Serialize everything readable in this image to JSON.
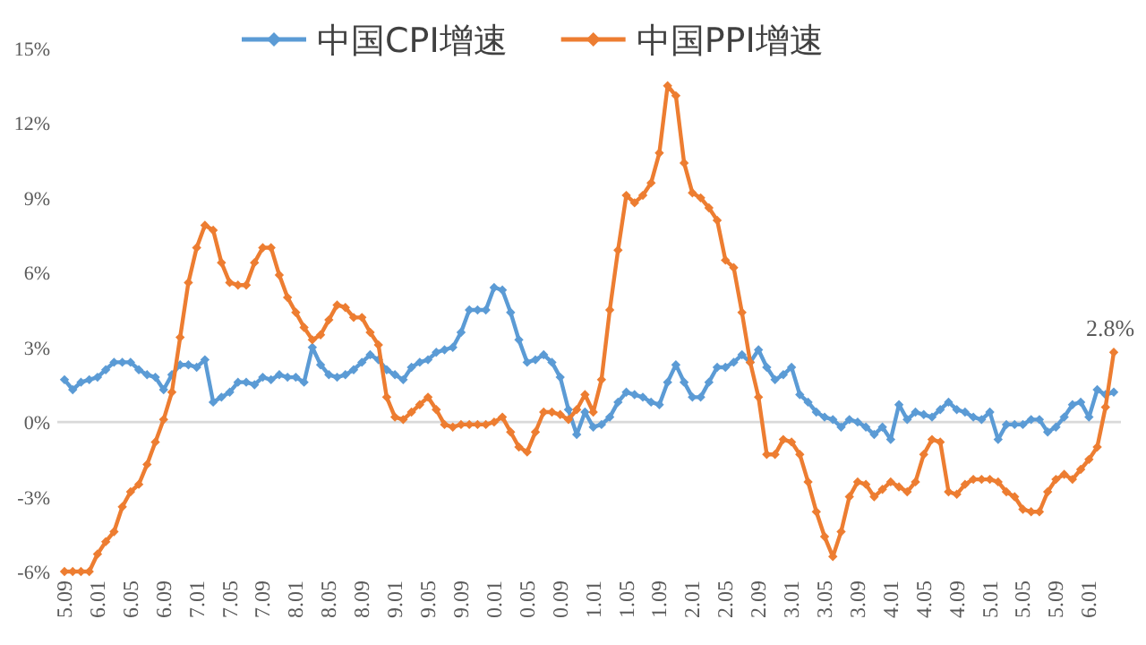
{
  "chart_data": {
    "type": "line",
    "marker": "diamond",
    "legend": "top",
    "ref_lines": [
      {
        "axis": "y",
        "value": 0,
        "color": "#d9d9d9"
      }
    ],
    "categories": [
      "5.09",
      null,
      null,
      null,
      "6.01",
      null,
      null,
      null,
      "6.05",
      null,
      null,
      null,
      "6.09",
      null,
      null,
      null,
      "7.01",
      null,
      null,
      null,
      "7.05",
      null,
      null,
      null,
      "7.09",
      null,
      null,
      null,
      "8.01",
      null,
      null,
      null,
      "8.05",
      null,
      null,
      null,
      "8.09",
      null,
      null,
      null,
      "9.01",
      null,
      null,
      null,
      "9.05",
      null,
      null,
      null,
      "9.09",
      null,
      null,
      null,
      "0.01",
      null,
      null,
      null,
      "0.05",
      null,
      null,
      null,
      "0.09",
      null,
      null,
      null,
      "1.01",
      null,
      null,
      null,
      "1.05",
      null,
      null,
      null,
      "1.09",
      null,
      null,
      null,
      "2.01",
      null,
      null,
      null,
      "2.05",
      null,
      null,
      null,
      "2.09",
      null,
      null,
      null,
      "3.01",
      null,
      null,
      null,
      "3.05",
      null,
      null,
      null,
      "3.09",
      null,
      null,
      null,
      "4.01",
      null,
      null,
      null,
      "4.05",
      null,
      null,
      null,
      "4.09",
      null,
      null,
      null,
      "5.01",
      null,
      null,
      null,
      "5.05",
      null,
      null,
      null,
      "5.09",
      null,
      null,
      null,
      "6.01",
      null,
      null,
      null
    ],
    "ylim": [
      -6,
      15
    ],
    "yticks": [
      {
        "value": -6,
        "label": "-6%"
      },
      {
        "value": -3,
        "label": "-3%"
      },
      {
        "value": 0,
        "label": "0%"
      },
      {
        "value": 3,
        "label": "3%"
      },
      {
        "value": 6,
        "label": "6%"
      },
      {
        "value": 9,
        "label": "9%"
      },
      {
        "value": 12,
        "label": "12%"
      },
      {
        "value": 15,
        "label": "15%"
      }
    ],
    "series": [
      {
        "name": "中国CPI增速",
        "color": "#5b9bd5",
        "values": [
          1.7,
          1.3,
          1.6,
          1.7,
          1.8,
          2.1,
          2.4,
          2.4,
          2.4,
          2.1,
          1.9,
          1.8,
          1.3,
          1.9,
          2.3,
          2.3,
          2.2,
          2.5,
          0.8,
          1.0,
          1.2,
          1.6,
          1.6,
          1.5,
          1.8,
          1.7,
          1.9,
          1.8,
          1.8,
          1.6,
          3.0,
          2.3,
          1.9,
          1.8,
          1.9,
          2.1,
          2.4,
          2.7,
          2.5,
          2.1,
          1.9,
          1.7,
          2.2,
          2.4,
          2.5,
          2.8,
          2.9,
          3.0,
          3.6,
          4.5,
          4.5,
          4.5,
          5.4,
          5.3,
          4.4,
          3.3,
          2.4,
          2.5,
          2.7,
          2.4,
          1.8,
          0.5,
          -0.5,
          0.4,
          -0.2,
          -0.1,
          0.2,
          0.8,
          1.2,
          1.1,
          1.0,
          0.8,
          0.7,
          1.6,
          2.3,
          1.6,
          1.0,
          1.0,
          1.6,
          2.2,
          2.2,
          2.4,
          2.7,
          2.4,
          2.9,
          2.2,
          1.7,
          1.9,
          2.2,
          1.1,
          0.8,
          0.4,
          0.2,
          0.1,
          -0.2,
          0.1,
          0,
          -0.2,
          -0.5,
          -0.2,
          -0.7,
          0.7,
          0.1,
          0.4,
          0.3,
          0.2,
          0.5,
          0.8,
          0.5,
          0.4,
          0.2,
          0.1,
          0.4,
          -0.7,
          -0.1,
          -0.1,
          -0.1,
          0.1,
          0.1,
          -0.4,
          -0.2,
          0.2,
          0.7,
          0.8,
          0.2,
          1.3,
          1.1,
          1.2
        ]
      },
      {
        "name": "中国PPI增速",
        "color": "#ed7d31",
        "values": [
          -6,
          -6,
          -6,
          -6,
          -5.3,
          -4.8,
          -4.4,
          -3.4,
          -2.8,
          -2.5,
          -1.7,
          -0.8,
          0.1,
          1.2,
          3.4,
          5.6,
          7.0,
          7.9,
          7.7,
          6.4,
          5.6,
          5.5,
          5.5,
          6.4,
          7.0,
          7.0,
          5.9,
          5.0,
          4.4,
          3.8,
          3.3,
          3.5,
          4.1,
          4.7,
          4.6,
          4.2,
          4.2,
          3.6,
          3.1,
          1.0,
          0.2,
          0.1,
          0.4,
          0.7,
          1.0,
          0.5,
          -0.1,
          -0.2,
          -0.1,
          -0.1,
          -0.1,
          -0.1,
          0,
          0.2,
          -0.4,
          -1.0,
          -1.2,
          -0.4,
          0.4,
          0.4,
          0.3,
          0.1,
          0.5,
          1.1,
          0.4,
          1.7,
          4.5,
          6.9,
          9.1,
          8.8,
          9.1,
          9.6,
          10.8,
          13.5,
          13.1,
          10.4,
          9.2,
          9.0,
          8.6,
          8.1,
          6.5,
          6.2,
          4.4,
          2.4,
          1.0,
          -1.3,
          -1.3,
          -0.7,
          -0.8,
          -1.3,
          -2.4,
          -3.6,
          -4.6,
          -5.4,
          -4.4,
          -3.0,
          -2.4,
          -2.5,
          -3.0,
          -2.7,
          -2.4,
          -2.6,
          -2.8,
          -2.4,
          -1.3,
          -0.7,
          -0.8,
          -2.8,
          -2.9,
          -2.5,
          -2.3,
          -2.3,
          -2.3,
          -2.4,
          -2.8,
          -3.0,
          -3.5,
          -3.6,
          -3.6,
          -2.8,
          -2.3,
          -2.1,
          -2.3,
          -1.9,
          -1.5,
          -1.0,
          0.6,
          2.8
        ],
        "value_labels": [
          null,
          null,
          null,
          null,
          null,
          null,
          null,
          null,
          null,
          null,
          null,
          null,
          null,
          null,
          null,
          null,
          null,
          null,
          null,
          null,
          null,
          null,
          null,
          null,
          null,
          null,
          null,
          null,
          null,
          null,
          null,
          null,
          null,
          null,
          null,
          null,
          null,
          null,
          null,
          null,
          null,
          null,
          null,
          null,
          null,
          null,
          null,
          null,
          null,
          null,
          null,
          null,
          null,
          null,
          null,
          null,
          null,
          null,
          null,
          null,
          null,
          null,
          null,
          null,
          null,
          null,
          null,
          null,
          null,
          null,
          null,
          null,
          null,
          null,
          null,
          null,
          null,
          null,
          null,
          null,
          null,
          null,
          null,
          null,
          null,
          null,
          null,
          null,
          null,
          null,
          null,
          null,
          null,
          null,
          null,
          null,
          null,
          null,
          null,
          null,
          null,
          null,
          null,
          null,
          null,
          null,
          null,
          null,
          null,
          null,
          null,
          null,
          null,
          null,
          null,
          null,
          null,
          null,
          null,
          null,
          null,
          null,
          null,
          null,
          null,
          null,
          null,
          "2.8%"
        ]
      }
    ]
  }
}
